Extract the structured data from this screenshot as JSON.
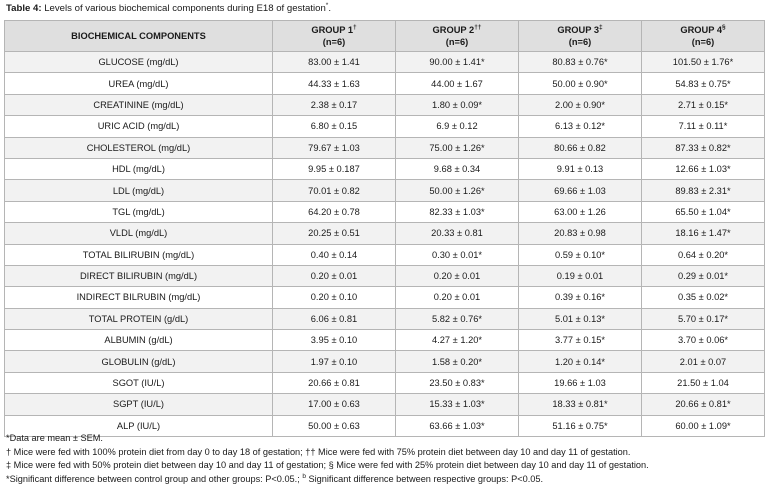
{
  "caption": {
    "label": "Table 4:",
    "text": " Levels of various biochemical components during E18 of gestation",
    "sup": "*",
    "end": "."
  },
  "table": {
    "header": {
      "components": "BIOCHEMICAL COMPONENTS",
      "groups": [
        {
          "name": "GROUP 1",
          "mark": "†",
          "n": "(n=6)"
        },
        {
          "name": "GROUP 2",
          "mark": "††",
          "n": "(n=6)"
        },
        {
          "name": "GROUP 3",
          "mark": "‡",
          "n": "(n=6)"
        },
        {
          "name": "GROUP 4",
          "mark": "§",
          "n": "(n=6)"
        }
      ]
    },
    "rows": [
      [
        "GLUCOSE  (mg/dL)",
        "83.00 ± 1.41",
        "90.00 ± 1.41*",
        "80.83 ± 0.76*",
        "101.50 ± 1.76*"
      ],
      [
        "UREA (mg/dL)",
        "44.33 ± 1.63",
        "44.00 ± 1.67",
        "50.00 ± 0.90*",
        "54.83 ± 0.75*"
      ],
      [
        "CREATININE (mg/dL)",
        "2.38 ± 0.17",
        "1.80 ± 0.09*",
        "2.00 ± 0.90*",
        "2.71 ± 0.15*"
      ],
      [
        "URIC ACID (mg/dL)",
        "6.80 ± 0.15",
        "6.9 ± 0.12",
        "6.13 ± 0.12*",
        "7.11 ± 0.11*"
      ],
      [
        "CHOLESTEROL (mg/dL)",
        "79.67 ± 1.03",
        "75.00 ± 1.26*",
        "80.66 ± 0.82",
        "87.33 ± 0.82*"
      ],
      [
        "HDL (mg/dL)",
        "9.95 ± 0.187",
        "9.68 ± 0.34",
        "9.91 ± 0.13",
        "12.66 ± 1.03*"
      ],
      [
        "LDL (mg/dL)",
        "70.01 ± 0.82",
        "50.00 ± 1.26*",
        "69.66 ± 1.03",
        "89.83 ± 2.31*"
      ],
      [
        "TGL (mg/dL)",
        "64.20 ± 0.78",
        "82.33 ± 1.03*",
        "63.00 ± 1.26",
        "65.50 ± 1.04*"
      ],
      [
        "VLDL (mg/dL)",
        "20.25 ± 0.51",
        "20.33 ± 0.81",
        "20.83 ± 0.98",
        "18.16 ± 1.47*"
      ],
      [
        "TOTAL BILIRUBIN (mg/dL)",
        "0.40 ± 0.14",
        "0.30 ± 0.01*",
        "0.59 ± 0.10*",
        "0.64 ± 0.20*"
      ],
      [
        "DIRECT BILIRUBIN (mg/dL)",
        "0.20 ± 0.01",
        "0.20 ± 0.01",
        "0.19 ± 0.01",
        "0.29 ± 0.01*"
      ],
      [
        "INDIRECT BILRUBIN (mg/dL)",
        "0.20 ± 0.10",
        "0.20 ± 0.01",
        "0.39 ± 0.16*",
        "0.35 ± 0.02*"
      ],
      [
        "TOTAL PROTEIN (g/dL)",
        "6.06 ± 0.81",
        "5.82 ± 0.76*",
        "5.01 ± 0.13*",
        "5.70 ± 0.17*"
      ],
      [
        "ALBUMIN (g/dL)",
        "3.95 ± 0.10",
        "4.27 ± 1.20*",
        "3.77 ± 0.15*",
        "3.70 ± 0.06*"
      ],
      [
        "GLOBULIN (g/dL)",
        "1.97 ± 0.10",
        "1.58 ± 0.20*",
        "1.20 ± 0.14*",
        "2.01 ± 0.07"
      ],
      [
        "SGOT (IU/L)",
        "20.66 ± 0.81",
        "23.50 ± 0.83*",
        "19.66 ±  1.03",
        "21.50 ± 1.04"
      ],
      [
        "SGPT (IU/L)",
        "17.00 ± 0.63",
        "15.33 ± 1.03*",
        "18.33 ± 0.81*",
        "20.66 ± 0.81*"
      ],
      [
        "ALP  (IU/L)",
        "50.00 ± 0.63",
        "63.66 ± 1.03*",
        "51.16 ± 0.75*",
        "60.00 ± 1.09*"
      ]
    ]
  },
  "notes": [
    "*Data are mean ± SEM.",
    "† Mice were fed with 100% protein diet from day 0 to day 18 of gestation; †† Mice were fed with 75% protein diet between day 10 and day 11 of gestation.",
    "‡ Mice were fed with 50% protein diet between day 10 and day 11 of gestation; § Mice were fed with 25% protein diet between day 10 and day 11 of gestation."
  ],
  "note_last": {
    "a": "*Significant difference between control group and other groups: P<0.05.; ",
    "sup": "b",
    "b": " Significant difference between respective groups: P<0.05."
  }
}
